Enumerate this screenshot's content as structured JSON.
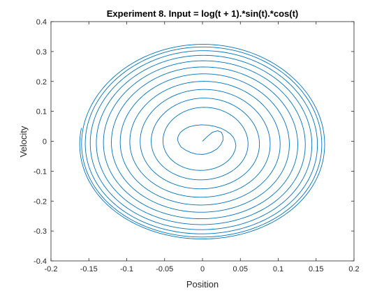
{
  "chart_data": {
    "type": "line",
    "title": "Experiment 8. Input = log(t + 1).*sin(t).*cos(t)",
    "xlabel": "Position",
    "ylabel": "Velocity",
    "xlim": [
      -0.2,
      0.2
    ],
    "ylim": [
      -0.4,
      0.4
    ],
    "xticks": [
      -0.2,
      -0.15,
      -0.1,
      -0.05,
      0,
      0.05,
      0.1,
      0.15,
      0.2
    ],
    "xtick_labels": [
      "-0.2",
      "-0.15",
      "-0.1",
      "-0.05",
      "0",
      "0.05",
      "0.1",
      "0.15",
      "0.2"
    ],
    "yticks": [
      -0.4,
      -0.3,
      -0.2,
      -0.1,
      0,
      0.1,
      0.2,
      0.3,
      0.4
    ],
    "ytick_labels": [
      "-0.4",
      "-0.3",
      "-0.2",
      "-0.1",
      "0",
      "0.1",
      "0.2",
      "0.3",
      "0.4"
    ],
    "grid": false,
    "box": true,
    "series": [
      {
        "color": "#0072BD",
        "shape": "outward spiral starting at origin, counter-clockwise in (position, velocity) plane, growing toward an elliptical limit cycle (|x|≈0.16, |v|≈0.32)",
        "x": [
          0,
          0.006,
          0.013,
          0.02,
          0.025,
          0.027,
          0.027,
          0.024,
          0.019,
          0.012,
          0.005,
          0.0,
          -0.008,
          -0.015,
          -0.022,
          -0.028,
          -0.031,
          -0.033,
          -0.032,
          -0.029,
          -0.024,
          -0.018,
          -0.01,
          -0.002,
          0.007,
          0.016,
          0.024,
          0.031,
          0.037,
          0.041,
          0.043,
          0.044
        ],
        "y": [
          0,
          0.015,
          0.03,
          0.035,
          0.03,
          0.018,
          0.003,
          -0.012,
          -0.026,
          -0.036,
          -0.042,
          -0.044,
          -0.043,
          -0.038,
          -0.03,
          -0.02,
          -0.008,
          0.005,
          0.018,
          0.03,
          0.04,
          0.048,
          0.053,
          0.055,
          0.054,
          0.05,
          0.044,
          0.035,
          0.024,
          0.012,
          0.0,
          -0.012
        ]
      }
    ]
  }
}
